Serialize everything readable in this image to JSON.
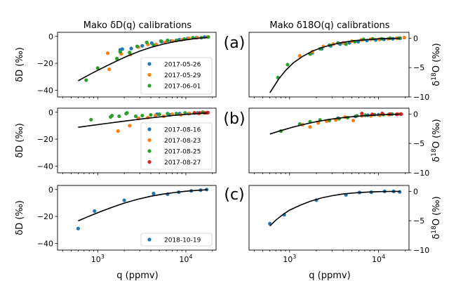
{
  "titles": {
    "left": "Mako δD(q) calibrations",
    "right": "Mako δ18O(q) calibrations"
  },
  "tags": [
    "(a)",
    "(b)",
    "(c)"
  ],
  "axis_labels": {
    "x": "q (ppmv)",
    "y_left": "δD (‰)",
    "y_right": "δ18O (‰)"
  },
  "colors": {
    "blue": "#1f77b4",
    "orange": "#ff7f0e",
    "green": "#2ca02c",
    "red": "#d62728",
    "fit": "#000000"
  },
  "chart_data": [
    {
      "type": "scatter",
      "panel": "a-dD",
      "x_scale": "log",
      "xlim": [
        350,
        22000
      ],
      "ylim": [
        -45,
        3
      ],
      "yticks": [
        0,
        -20,
        -40
      ],
      "legend": [
        "2017-05-26",
        "2017-05-29",
        "2017-06-01"
      ],
      "series": [
        {
          "name": "2017-05-26",
          "color": "blue",
          "points": [
            [
              1800,
              -10
            ],
            [
              1900,
              -9.5
            ],
            [
              2400,
              -9
            ],
            [
              3200,
              -7
            ],
            [
              4100,
              -5
            ],
            [
              5300,
              -4
            ],
            [
              6800,
              -3.5
            ],
            [
              8400,
              -2.5
            ],
            [
              10500,
              -1.5
            ],
            [
              13200,
              -1
            ],
            [
              16300,
              -0.5
            ]
          ]
        },
        {
          "name": "2017-05-29",
          "color": "orange",
          "points": [
            [
              1300,
              -12.5
            ],
            [
              1350,
              -24.5
            ],
            [
              1850,
              -13
            ],
            [
              2350,
              -13.5
            ],
            [
              2900,
              -8
            ],
            [
              3700,
              -6
            ],
            [
              4600,
              -6
            ],
            [
              5800,
              -4.5
            ],
            [
              7100,
              -3.5
            ],
            [
              9000,
              -2.5
            ],
            [
              10800,
              -1.5
            ],
            [
              13500,
              -1
            ],
            [
              17500,
              -0.5
            ]
          ]
        },
        {
          "name": "2017-06-01",
          "color": "green",
          "points": [
            [
              740,
              -32.5
            ],
            [
              1000,
              -23.5
            ],
            [
              1650,
              -16.5
            ],
            [
              1800,
              -11.5
            ],
            [
              2300,
              -12
            ],
            [
              2800,
              -7.5
            ],
            [
              3600,
              -4.5
            ],
            [
              4300,
              -6.5
            ],
            [
              5200,
              -3.5
            ],
            [
              6200,
              -3
            ],
            [
              7800,
              -3
            ],
            [
              9600,
              -2
            ],
            [
              12000,
              -1
            ],
            [
              15000,
              -1
            ],
            [
              18000,
              -0.5
            ]
          ]
        }
      ],
      "fit": [
        [
          600,
          -33
        ],
        [
          800,
          -28.5
        ],
        [
          1000,
          -25.2
        ],
        [
          1300,
          -21.5
        ],
        [
          1700,
          -17.8
        ],
        [
          2200,
          -14.5
        ],
        [
          3000,
          -11
        ],
        [
          4000,
          -8.2
        ],
        [
          5500,
          -5.8
        ],
        [
          7500,
          -3.9
        ],
        [
          10000,
          -2.6
        ],
        [
          13500,
          -1.5
        ],
        [
          17500,
          -0.8
        ]
      ]
    },
    {
      "type": "scatter",
      "panel": "a-d18O",
      "x_scale": "log",
      "xlim": [
        350,
        22000
      ],
      "ylim": [
        -10,
        1
      ],
      "yticks": [
        0,
        -5,
        -10
      ],
      "series": [
        {
          "name": "2017-05-26",
          "color": "blue",
          "points": [
            [
              1800,
              -2.5
            ],
            [
              2300,
              -1.8
            ],
            [
              2900,
              -1.3
            ],
            [
              3700,
              -1.0
            ],
            [
              4700,
              -0.8
            ],
            [
              5900,
              -0.6
            ],
            [
              7400,
              -0.4
            ],
            [
              9300,
              -0.3
            ],
            [
              11500,
              -0.2
            ],
            [
              14500,
              -0.1
            ],
            [
              17500,
              0
            ]
          ]
        },
        {
          "name": "2017-05-29",
          "color": "orange",
          "points": [
            [
              1300,
              -3.0
            ],
            [
              1800,
              -2.3
            ],
            [
              2400,
              -1.4
            ],
            [
              3100,
              -1.0
            ],
            [
              4000,
              -0.8
            ],
            [
              5000,
              -0.5
            ],
            [
              6400,
              -0.3
            ],
            [
              8100,
              -0.2
            ],
            [
              10200,
              -0.2
            ],
            [
              12800,
              -0.1
            ],
            [
              16000,
              0
            ],
            [
              19500,
              0.1
            ]
          ]
        },
        {
          "name": "2017-06-01",
          "color": "green",
          "points": [
            [
              740,
              -6.7
            ],
            [
              950,
              -4.5
            ],
            [
              1700,
              -2.7
            ],
            [
              2200,
              -1.8
            ],
            [
              2800,
              -1.2
            ],
            [
              3500,
              -0.8
            ],
            [
              4300,
              -1.0
            ],
            [
              5400,
              -0.6
            ],
            [
              6800,
              -0.2
            ],
            [
              8600,
              -0.1
            ],
            [
              10800,
              -0.1
            ],
            [
              13500,
              0
            ],
            [
              17000,
              0
            ]
          ]
        }
      ],
      "fit": [
        [
          600,
          -9.3
        ],
        [
          750,
          -7.0
        ],
        [
          900,
          -5.5
        ],
        [
          1100,
          -4.2
        ],
        [
          1400,
          -3.1
        ],
        [
          1800,
          -2.2
        ],
        [
          2300,
          -1.6
        ],
        [
          3000,
          -1.1
        ],
        [
          4000,
          -0.7
        ],
        [
          5500,
          -0.4
        ],
        [
          7500,
          -0.25
        ],
        [
          10000,
          -0.1
        ],
        [
          13500,
          -0.05
        ],
        [
          17500,
          0
        ]
      ]
    },
    {
      "type": "scatter",
      "panel": "b-dD",
      "x_scale": "log",
      "xlim": [
        350,
        22000
      ],
      "ylim": [
        -45,
        3
      ],
      "yticks": [
        0,
        -20,
        -40
      ],
      "legend": [
        "2017-08-16",
        "2017-08-23",
        "2017-08-25",
        "2017-08-27"
      ],
      "series": [
        {
          "name": "2017-08-16",
          "color": "blue",
          "points": [
            [
              4700,
              -1.5
            ],
            [
              6600,
              -2
            ],
            [
              8500,
              -1
            ],
            [
              10800,
              -1
            ],
            [
              13600,
              -0.5
            ],
            [
              17000,
              -0.5
            ]
          ]
        },
        {
          "name": "2017-08-23",
          "color": "orange",
          "points": [
            [
              1700,
              -14
            ],
            [
              2300,
              -10
            ],
            [
              2900,
              -4.5
            ],
            [
              3700,
              -4
            ],
            [
              4500,
              -2.5
            ],
            [
              5600,
              -3
            ],
            [
              7000,
              -1.5
            ],
            [
              8800,
              -2
            ],
            [
              11000,
              -1
            ],
            [
              14000,
              -1
            ],
            [
              17500,
              -0.5
            ]
          ]
        },
        {
          "name": "2017-08-25",
          "color": "green",
          "points": [
            [
              840,
              -5.5
            ],
            [
              1400,
              -3.5
            ],
            [
              1450,
              -2.5
            ],
            [
              1750,
              -3
            ],
            [
              2100,
              -1
            ],
            [
              2150,
              -0.5
            ],
            [
              2700,
              -3
            ],
            [
              3200,
              -2.5
            ],
            [
              4000,
              -2
            ],
            [
              5000,
              -1.5
            ],
            [
              6200,
              -1
            ],
            [
              7800,
              -1
            ],
            [
              9800,
              -0.5
            ],
            [
              12500,
              -0.5
            ],
            [
              15500,
              0
            ]
          ]
        },
        {
          "name": "2017-08-27",
          "color": "red",
          "points": [
            [
              12500,
              -0.5
            ],
            [
              14300,
              -0.5
            ],
            [
              16300,
              -0.5
            ],
            [
              17800,
              -0.3
            ]
          ]
        }
      ],
      "fit": [
        [
          600,
          -11.2
        ],
        [
          900,
          -9.6
        ],
        [
          1300,
          -8.2
        ],
        [
          1800,
          -7.0
        ],
        [
          2500,
          -5.8
        ],
        [
          3500,
          -4.6
        ],
        [
          5000,
          -3.5
        ],
        [
          7000,
          -2.5
        ],
        [
          10000,
          -1.6
        ],
        [
          13500,
          -1.0
        ],
        [
          17500,
          -0.6
        ]
      ]
    },
    {
      "type": "scatter",
      "panel": "b-d18O",
      "x_scale": "log",
      "xlim": [
        350,
        22000
      ],
      "ylim": [
        -10,
        1
      ],
      "yticks": [
        0,
        -5,
        -10
      ],
      "series": [
        {
          "name": "2017-08-16",
          "color": "blue",
          "points": [
            [
              3500,
              -0.7
            ],
            [
              5500,
              -0.4
            ],
            [
              7600,
              -0.2
            ],
            [
              10000,
              -0.1
            ],
            [
              13000,
              -0.05
            ],
            [
              16500,
              0
            ]
          ]
        },
        {
          "name": "2017-08-23",
          "color": "orange",
          "points": [
            [
              1400,
              -1.8
            ],
            [
              1700,
              -2.2
            ],
            [
              2100,
              -1.5
            ],
            [
              2600,
              -1.2
            ],
            [
              3300,
              -1.0
            ],
            [
              4200,
              -0.5
            ],
            [
              5200,
              -1.1
            ],
            [
              6500,
              -0.3
            ],
            [
              8200,
              -0.3
            ],
            [
              10300,
              -0.2
            ],
            [
              13000,
              -0.1
            ],
            [
              16500,
              0
            ]
          ]
        },
        {
          "name": "2017-08-25",
          "color": "green",
          "points": [
            [
              800,
              -2.9
            ],
            [
              1300,
              -1.7
            ],
            [
              1700,
              -1.3
            ],
            [
              2200,
              -1.0
            ],
            [
              2800,
              -1.1
            ],
            [
              3600,
              -0.8
            ],
            [
              4500,
              -0.6
            ],
            [
              5700,
              -0.3
            ],
            [
              7100,
              -0.2
            ],
            [
              9000,
              -0.1
            ],
            [
              11300,
              -0.1
            ],
            [
              14200,
              0
            ],
            [
              17800,
              0
            ]
          ]
        },
        {
          "name": "2017-08-27",
          "color": "red",
          "points": [
            [
              6500,
              0.1
            ],
            [
              8500,
              -0.05
            ],
            [
              11000,
              0.1
            ],
            [
              13500,
              0
            ],
            [
              16000,
              -0.05
            ],
            [
              18000,
              0
            ]
          ]
        }
      ],
      "fit": [
        [
          600,
          -3.4
        ],
        [
          800,
          -2.8
        ],
        [
          1100,
          -2.2
        ],
        [
          1500,
          -1.7
        ],
        [
          2000,
          -1.3
        ],
        [
          2800,
          -0.9
        ],
        [
          4000,
          -0.6
        ],
        [
          5500,
          -0.4
        ],
        [
          7500,
          -0.25
        ],
        [
          10000,
          -0.15
        ],
        [
          13500,
          -0.07
        ],
        [
          17500,
          0
        ]
      ]
    },
    {
      "type": "scatter",
      "panel": "c-dD",
      "x_scale": "log",
      "xlim": [
        350,
        22000
      ],
      "ylim": [
        -45,
        3
      ],
      "yticks": [
        0,
        -20,
        -40
      ],
      "legend": [
        "2018-10-19"
      ],
      "series": [
        {
          "name": "2018-10-19",
          "color": "blue",
          "points": [
            [
              600,
              -29
            ],
            [
              920,
              -16
            ],
            [
              2000,
              -8
            ],
            [
              4300,
              -3
            ],
            [
              6200,
              -3.5
            ],
            [
              8300,
              -2
            ],
            [
              11500,
              -1
            ],
            [
              14700,
              -0.5
            ],
            [
              17200,
              0
            ]
          ]
        }
      ],
      "fit": [
        [
          600,
          -23.3
        ],
        [
          800,
          -19.8
        ],
        [
          1100,
          -16.2
        ],
        [
          1500,
          -12.9
        ],
        [
          2000,
          -10.1
        ],
        [
          2800,
          -7.4
        ],
        [
          4000,
          -5.0
        ],
        [
          5500,
          -3.4
        ],
        [
          7500,
          -2.2
        ],
        [
          10000,
          -1.3
        ],
        [
          13500,
          -0.6
        ],
        [
          17500,
          -0.2
        ]
      ]
    },
    {
      "type": "scatter",
      "panel": "c-d18O",
      "x_scale": "log",
      "xlim": [
        350,
        22000
      ],
      "ylim": [
        -10,
        1
      ],
      "yticks": [
        0,
        -5,
        -10
      ],
      "series": [
        {
          "name": "2018-10-19",
          "color": "blue",
          "points": [
            [
              600,
              -5.5
            ],
            [
              870,
              -4.0
            ],
            [
              2000,
              -1.5
            ],
            [
              4300,
              -0.6
            ],
            [
              6100,
              -0.2
            ],
            [
              8300,
              -0.15
            ],
            [
              11700,
              0
            ],
            [
              14800,
              0
            ],
            [
              17300,
              -0.1
            ]
          ]
        }
      ],
      "fit": [
        [
          600,
          -5.9
        ],
        [
          700,
          -4.9
        ],
        [
          850,
          -3.9
        ],
        [
          1000,
          -3.2
        ],
        [
          1300,
          -2.4
        ],
        [
          1700,
          -1.7
        ],
        [
          2300,
          -1.1
        ],
        [
          3000,
          -0.75
        ],
        [
          4000,
          -0.45
        ],
        [
          5500,
          -0.25
        ],
        [
          7500,
          -0.12
        ],
        [
          10000,
          -0.05
        ],
        [
          13500,
          -0.02
        ],
        [
          17500,
          0
        ]
      ]
    }
  ]
}
